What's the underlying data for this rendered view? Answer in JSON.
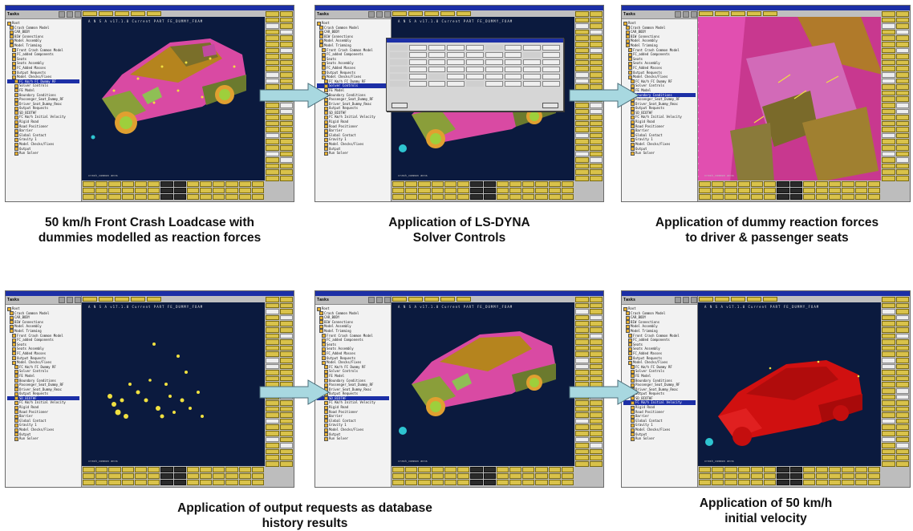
{
  "panels": [
    {
      "caption": "50 km/h Front Crash Loadcase with\ndummies modelled as reaction forces",
      "tree": [
        "Root",
        "Crash Common Model",
        "CAR_BODY",
        "BIW Connections",
        "Model Assembly",
        "Model Trimming",
        "Front Crash Common Model",
        "FC_added Components",
        "Seats",
        "Seats Assembly",
        "FC_Added Masses",
        "Output Requests",
        "Model Checks/Fixes",
        "FC Km/h FC Dummy RF",
        "Solver Controls",
        "FE Model",
        "Boundary Conditions",
        "Passenger_Seat_Dummy_RF",
        "Driver_Seat_Dummy_Reac",
        "Output Requests",
        "SD_BIOTHF",
        "FC Km/h Initial Velocity",
        "Rigid Road",
        "Road Positioner",
        "Barrier",
        "Global Contact",
        "Gravity 1",
        "Model Checks/Fixes",
        "Output",
        "Run Solver"
      ],
      "selected_index": 13,
      "header": "A N S A  v17.1.0     Current PART  FE_DUMMY_FOAM",
      "footer": "crash_common anns"
    },
    {
      "caption": "Application of LS-DYNA\nSolver Controls",
      "tree": [
        "Root",
        "Crash Common Model",
        "CAR_BODY",
        "BIW Connections",
        "Model Assembly",
        "Model Trimming",
        "Front Crash Common Model",
        "FC_added Components",
        "Seats",
        "Seats Assembly",
        "FC_Added Masses",
        "Output Requests",
        "Model Checks/Fixes",
        "FC Km/h FC Dummy RF",
        "Solver Controls",
        "FE Model",
        "Boundary Conditions",
        "Passenger_Seat_Dummy_RF",
        "Driver_Seat_Dummy_Reac",
        "Output Requests",
        "SD_BIOTHF",
        "FC Km/h Initial Velocity",
        "Rigid Road",
        "Road Positioner",
        "Barrier",
        "Global Contact",
        "Gravity 1",
        "Model Checks/Fixes",
        "Output",
        "Run Solver"
      ],
      "selected_index": 14,
      "header": "A N S A  v17.1.0     Current PART  FE_DUMMY_FOAM",
      "footer": "crash_common anns"
    },
    {
      "caption": "Application of dummy reaction forces\nto driver & passenger seats",
      "tree": [
        "Root",
        "Crash Common Model",
        "CAR_BODY",
        "BIW Connections",
        "Model Assembly",
        "Model Trimming",
        "Front Crash Common Model",
        "FC_added Components",
        "Seats",
        "Seats Assembly",
        "FC_Added Masses",
        "Output Requests",
        "Model Checks/Fixes",
        "FC Km/h FC Dummy RF",
        "Solver Controls",
        "FE Model",
        "Boundary Conditions",
        "Passenger_Seat_Dummy_RF",
        "Driver_Seat_Dummy_Reac",
        "Output Requests",
        "SD_BIOTHF",
        "FC Km/h Initial Velocity",
        "Rigid Road",
        "Road Positioner",
        "Barrier",
        "Global Contact",
        "Gravity 1",
        "Model Checks/Fixes",
        "Output",
        "Run Solver"
      ],
      "selected_index": 16,
      "header": "",
      "footer": "crash_common anns"
    },
    {
      "caption": "Application of output requests as database\nhistory results",
      "tree": [
        "Root",
        "Crash Common Model",
        "CAR_BODY",
        "BIW Connections",
        "Model Assembly",
        "Model Trimming",
        "Front Crash Common Model",
        "FC_added Components",
        "Seats",
        "Seats Assembly",
        "FC_Added Masses",
        "Output Requests",
        "Model Checks/Fixes",
        "FC Km/h FC Dummy RF",
        "Solver Controls",
        "FE Model",
        "Boundary Conditions",
        "Passenger_Seat_Dummy_RF",
        "Driver_Seat_Dummy_Reac",
        "Output Requests",
        "SD_BIOTHF",
        "FC Km/h Initial Velocity",
        "Rigid Road",
        "Road Positioner",
        "Barrier",
        "Global Contact",
        "Gravity 1",
        "Model Checks/Fixes",
        "Output",
        "Run Solver"
      ],
      "selected_index": 20,
      "header": "A N S A  v17.1.0     Current PART  FE_DUMMY_FOAM",
      "footer": "crash_common anns"
    },
    {
      "caption": "",
      "tree": [
        "Root",
        "Crash Common Model",
        "CAR_BODY",
        "BIW Connections",
        "Model Assembly",
        "Model Trimming",
        "Front Crash Common Model",
        "FC_added Components",
        "Seats",
        "Seats Assembly",
        "FC_Added Masses",
        "Output Requests",
        "Model Checks/Fixes",
        "FC Km/h FC Dummy RF",
        "Solver Controls",
        "FE Model",
        "Boundary Conditions",
        "Passenger_Seat_Dummy_RF",
        "Driver_Seat_Dummy_Reac",
        "Output Requests",
        "SD_BIOTHF",
        "FC Km/h Initial Velocity",
        "Rigid Road",
        "Road Positioner",
        "Barrier",
        "Global Contact",
        "Gravity 1",
        "Model Checks/Fixes",
        "Output",
        "Run Solver"
      ],
      "selected_index": 20,
      "header": "A N S A  v17.1.0     Current PART  FE_DUMMY_FOAM",
      "footer": "crash_common anns"
    },
    {
      "caption": "Application of 50 km/h\ninitial velocity",
      "tree": [
        "Root",
        "Crash Common Model",
        "CAR_BODY",
        "BIW Connections",
        "Model Assembly",
        "Model Trimming",
        "Front Crash Common Model",
        "FC_added Components",
        "Seats",
        "Seats Assembly",
        "FC_Added Masses",
        "Output Requests",
        "Model Checks/Fixes",
        "FC Km/h FC Dummy RF",
        "Solver Controls",
        "FE Model",
        "Boundary Conditions",
        "Passenger_Seat_Dummy_RF",
        "Driver_Seat_Dummy_Reac",
        "Output Requests",
        "SD_BIOTHF",
        "FC Km/h Initial Velocity",
        "Rigid Road",
        "Road Positioner",
        "Barrier",
        "Global Contact",
        "Gravity 1",
        "Model Checks/Fixes",
        "Output",
        "Run Solver"
      ],
      "selected_index": 21,
      "header": "A N S A  v17.1.0     Current PART  FE_DUMMY_FOAM",
      "footer": "crash_common anns"
    }
  ],
  "colors": {
    "accent": "#1c2fa6",
    "viewport": "#0b1a3e",
    "button": "#d9c24a",
    "arrow": "#a8d8e0"
  }
}
